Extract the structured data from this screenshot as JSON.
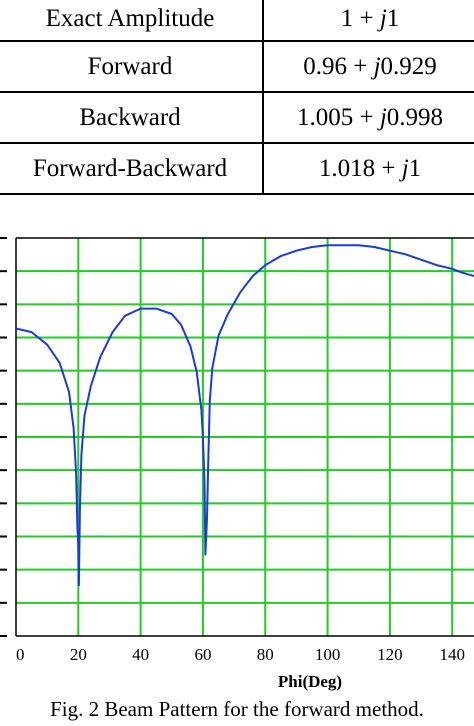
{
  "table": {
    "rows": [
      {
        "method": "Exact Amplitude",
        "value_prefix": "1 + ",
        "value_j": "j",
        "value_suffix": "1"
      },
      {
        "method": "Forward",
        "value_prefix": "0.96 + ",
        "value_j": "j",
        "value_suffix": "0.929"
      },
      {
        "method": "Backward",
        "value_prefix": "1.005 + ",
        "value_j": "j",
        "value_suffix": "0.998"
      },
      {
        "method": "Forward-Backward",
        "value_prefix": "1.018 + ",
        "value_j": "j",
        "value_suffix": "1"
      }
    ]
  },
  "caption": "Fig. 2 Beam Pattern for the forward method.",
  "colors": {
    "grid": "#22cc22",
    "curve": "#1a3adc",
    "frame": "#000000"
  },
  "chart_data": {
    "type": "line",
    "xlabel": "Phi(Deg)",
    "ylabel": "",
    "x_ticks": [
      0,
      20,
      40,
      60,
      80,
      100,
      120,
      140
    ],
    "xlim": [
      0,
      147
    ],
    "ylim": [
      -22,
      0
    ],
    "y_tick_count": 12,
    "grid": true,
    "series": [
      {
        "values": [
          [
            0,
            -5.0
          ],
          [
            5,
            -5.2
          ],
          [
            10,
            -5.9
          ],
          [
            14,
            -6.9
          ],
          [
            17,
            -8.5
          ],
          [
            18.5,
            -10.5
          ],
          [
            19.3,
            -13
          ],
          [
            19.7,
            -16
          ],
          [
            20,
            -17
          ],
          [
            20.2,
            -19.2
          ],
          [
            20.5,
            -15
          ],
          [
            21,
            -12
          ],
          [
            22,
            -9.8
          ],
          [
            24,
            -8.2
          ],
          [
            27,
            -6.6
          ],
          [
            31,
            -5.2
          ],
          [
            35,
            -4.3
          ],
          [
            40,
            -3.9
          ],
          [
            45,
            -3.9
          ],
          [
            50,
            -4.2
          ],
          [
            53,
            -4.8
          ],
          [
            56,
            -6.0
          ],
          [
            58,
            -7.4
          ],
          [
            59.5,
            -9.5
          ],
          [
            60,
            -11
          ],
          [
            60.5,
            -13.5
          ],
          [
            60.8,
            -17.5
          ],
          [
            61.3,
            -15.5
          ],
          [
            61.7,
            -12.5
          ],
          [
            62.2,
            -9.0
          ],
          [
            63,
            -7.2
          ],
          [
            65,
            -5.4
          ],
          [
            68,
            -4.2
          ],
          [
            72,
            -3.0
          ],
          [
            76,
            -2.1
          ],
          [
            80,
            -1.5
          ],
          [
            85,
            -1.0
          ],
          [
            90,
            -0.7
          ],
          [
            95,
            -0.5
          ],
          [
            100,
            -0.4
          ],
          [
            105,
            -0.4
          ],
          [
            110,
            -0.4
          ],
          [
            115,
            -0.5
          ],
          [
            120,
            -0.7
          ],
          [
            125,
            -0.9
          ],
          [
            130,
            -1.2
          ],
          [
            135,
            -1.5
          ],
          [
            140,
            -1.7
          ],
          [
            143,
            -1.9
          ],
          [
            147,
            -2.1
          ]
        ]
      }
    ]
  }
}
